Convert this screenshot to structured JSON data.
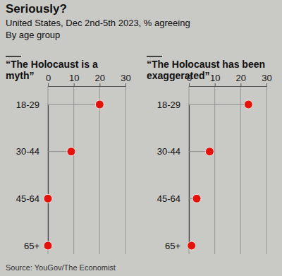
{
  "title": "Seriously?",
  "subtitle": "United States, Dec 2nd-5th 2023, % agreeing",
  "note": "By age group",
  "source": "Source: YouGov/The Economist",
  "chart_data": [
    {
      "type": "dot",
      "title": "“The Holocaust is a myth”",
      "categories": [
        "18-29",
        "30-44",
        "45-64",
        "65+"
      ],
      "values": [
        20,
        9,
        0,
        0
      ],
      "xlim": [
        0,
        30
      ],
      "xticks": [
        0,
        10,
        20,
        30
      ],
      "orientation": "horizontal",
      "grid": true,
      "color": "#e3120b"
    },
    {
      "type": "dot",
      "title": "“The Holocaust has been exaggerated”",
      "categories": [
        "18-29",
        "30-44",
        "45-64",
        "65+"
      ],
      "values": [
        23,
        8,
        3,
        1
      ],
      "xlim": [
        0,
        30
      ],
      "xticks": [
        0,
        10,
        20,
        30
      ],
      "orientation": "horizontal",
      "grid": true,
      "color": "#e3120b"
    }
  ]
}
